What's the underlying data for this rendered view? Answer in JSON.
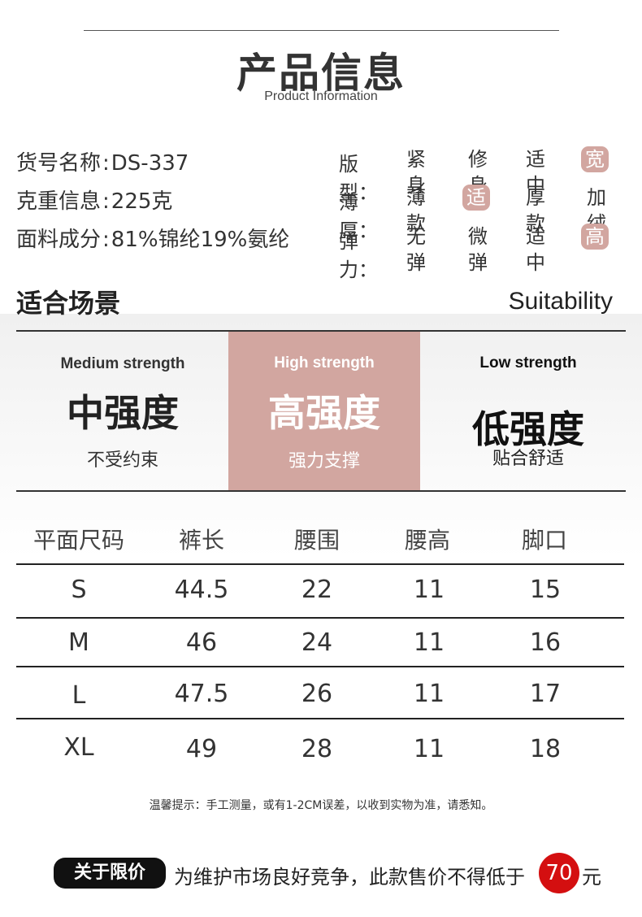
{
  "header": {
    "title": "产品信息",
    "subtitle": "Product Information"
  },
  "info": [
    {
      "label": "货号名称",
      "colon": ":",
      "value": "DS-337"
    },
    {
      "label": "克重信息",
      "colon": ":",
      "value": "225克"
    },
    {
      "label": "面料成分",
      "colon": ":",
      "value": "81%锦纶19%氨纶"
    }
  ],
  "options": [
    {
      "label": "版型：",
      "items": [
        "紧身",
        "修身",
        "适中",
        "宽松"
      ],
      "selected": 3
    },
    {
      "label": "薄厚：",
      "items": [
        "薄款",
        "适中",
        "厚款",
        "加绒"
      ],
      "selected": 1
    },
    {
      "label": "弹力：",
      "items": [
        "无弹",
        "微弹",
        "适中",
        "高弹"
      ],
      "selected": 3
    }
  ],
  "suitability": {
    "title": "适合场景",
    "title_en": "Suitability",
    "columns": [
      {
        "en": "Medium strength",
        "cn": "中强度",
        "sub": "不受约束"
      },
      {
        "en": "High strength",
        "cn": "高强度",
        "sub": "强力支撑"
      },
      {
        "en": "Low strength",
        "cn": "低强度",
        "sub": "贴合舒适"
      }
    ]
  },
  "size_table": {
    "headers": [
      "平面尺码",
      "裤长",
      "腰围",
      "腰高",
      "脚口"
    ],
    "rows": [
      [
        "S",
        "44.5",
        "22",
        "11",
        "15"
      ],
      [
        "M",
        "46",
        "24",
        "11",
        "16"
      ],
      [
        "L",
        "47.5",
        "26",
        "11",
        "17"
      ],
      [
        "XL",
        "49",
        "28",
        "11",
        "18"
      ]
    ]
  },
  "note": "温馨提示：手工测量，或有1-2CM误差，以收到实物为准，请悉知。",
  "price": {
    "badge": "关于限价",
    "text": "为维护市场良好竞争，此款售价不得低于",
    "amount": "70",
    "unit": "元"
  },
  "colors": {
    "accent": "#d2a6a0",
    "price_red": "#d40f10"
  }
}
